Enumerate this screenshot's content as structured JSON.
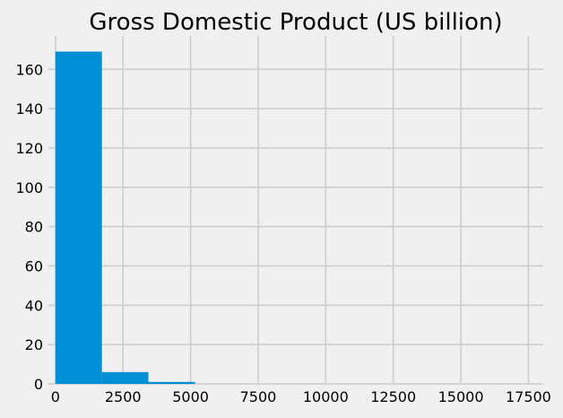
{
  "chart_data": {
    "type": "bar",
    "subtype": "histogram",
    "title": "Gross Domestic Product (US billion)",
    "xlabel": "",
    "ylabel": "",
    "xlim": [
      -260,
      18050
    ],
    "ylim": [
      0,
      177
    ],
    "bins": [
      {
        "start": 0,
        "end": 1720,
        "count": 169
      },
      {
        "start": 1720,
        "end": 3440,
        "count": 6
      },
      {
        "start": 3440,
        "end": 5160,
        "count": 1
      },
      {
        "start": 5160,
        "end": 6880,
        "count": 0
      },
      {
        "start": 6880,
        "end": 8600,
        "count": 0
      },
      {
        "start": 8600,
        "end": 10320,
        "count": 0
      },
      {
        "start": 10320,
        "end": 12040,
        "count": 0
      },
      {
        "start": 12040,
        "end": 13760,
        "count": 0
      },
      {
        "start": 13760,
        "end": 15480,
        "count": 0
      },
      {
        "start": 15480,
        "end": 17200,
        "count": 0
      }
    ],
    "xticks": [
      0,
      2500,
      5000,
      7500,
      10000,
      12500,
      15000,
      17500
    ],
    "xtick_labels": [
      "0",
      "2500",
      "5000",
      "7500",
      "10000",
      "12500",
      "15000",
      "17500"
    ],
    "yticks": [
      0,
      20,
      40,
      60,
      80,
      100,
      120,
      140,
      160
    ],
    "ytick_labels": [
      "0",
      "20",
      "40",
      "60",
      "80",
      "100",
      "120",
      "140",
      "160"
    ],
    "grid": true,
    "legend": "none",
    "colors": {
      "bar": "#008fd5",
      "grid": "#cbcbcb",
      "background": "#f0f0f0",
      "text": "#000000"
    }
  }
}
